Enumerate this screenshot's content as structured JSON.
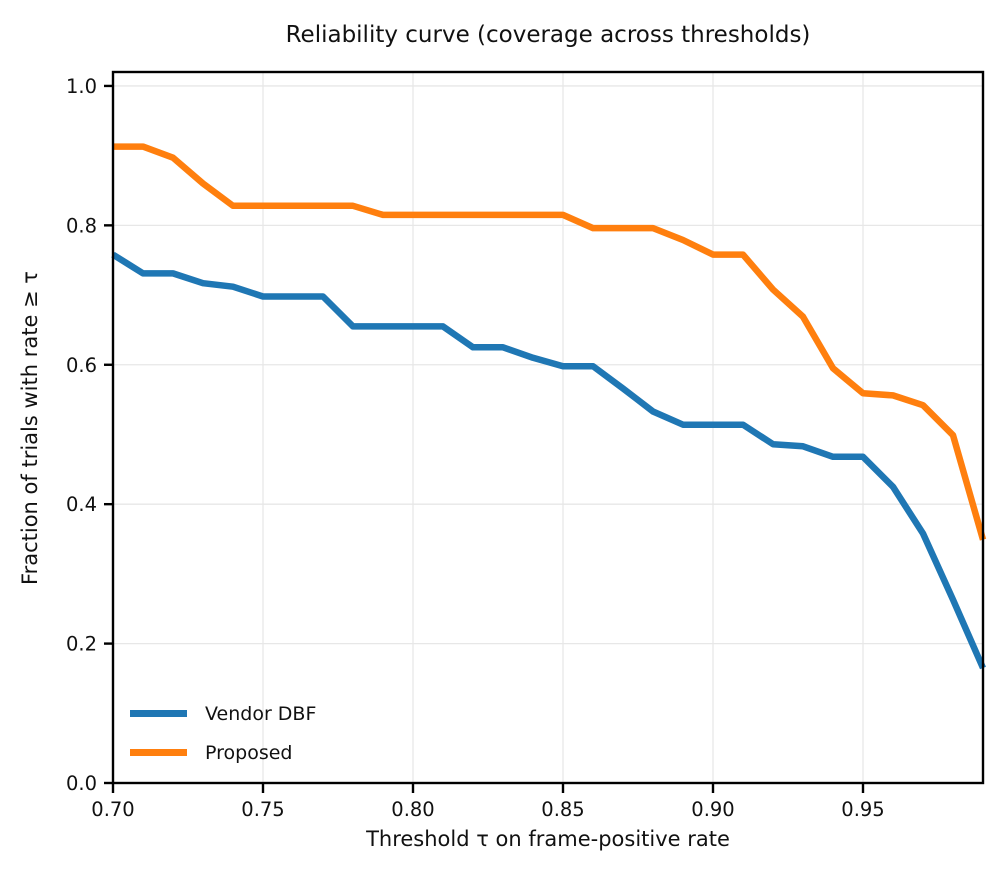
{
  "chart_data": {
    "type": "line",
    "title": "Reliability curve (coverage across thresholds)",
    "xlabel": "Threshold τ on frame-positive rate",
    "ylabel": "Fraction of trials with rate ≥ τ",
    "x": [
      0.7,
      0.71,
      0.72,
      0.73,
      0.74,
      0.75,
      0.76,
      0.77,
      0.78,
      0.79,
      0.8,
      0.81,
      0.82,
      0.83,
      0.84,
      0.85,
      0.86,
      0.87,
      0.88,
      0.89,
      0.9,
      0.91,
      0.92,
      0.93,
      0.94,
      0.95,
      0.96,
      0.97,
      0.98,
      0.99
    ],
    "series": [
      {
        "name": "Vendor DBF",
        "color": "#1f77b4",
        "values": [
          0.758,
          0.731,
          0.731,
          0.717,
          0.712,
          0.698,
          0.698,
          0.698,
          0.655,
          0.655,
          0.655,
          0.655,
          0.625,
          0.625,
          0.61,
          0.598,
          0.598,
          0.566,
          0.533,
          0.514,
          0.514,
          0.514,
          0.486,
          0.483,
          0.468,
          0.468,
          0.425,
          0.358,
          0.263,
          0.165
        ]
      },
      {
        "name": "Proposed",
        "color": "#ff7f0e",
        "values": [
          0.913,
          0.913,
          0.897,
          0.86,
          0.828,
          0.828,
          0.828,
          0.828,
          0.828,
          0.815,
          0.815,
          0.815,
          0.815,
          0.815,
          0.815,
          0.815,
          0.796,
          0.796,
          0.796,
          0.779,
          0.758,
          0.758,
          0.708,
          0.669,
          0.595,
          0.559,
          0.556,
          0.542,
          0.499,
          0.349
        ]
      }
    ],
    "xlim": [
      0.7,
      0.99
    ],
    "ylim": [
      0.0,
      1.02
    ],
    "xticks": [
      {
        "value": 0.7,
        "label": "0.70"
      },
      {
        "value": 0.75,
        "label": "0.75"
      },
      {
        "value": 0.8,
        "label": "0.80"
      },
      {
        "value": 0.85,
        "label": "0.85"
      },
      {
        "value": 0.9,
        "label": "0.90"
      },
      {
        "value": 0.95,
        "label": "0.95"
      }
    ],
    "yticks": [
      {
        "value": 0.0,
        "label": "0.0"
      },
      {
        "value": 0.2,
        "label": "0.2"
      },
      {
        "value": 0.4,
        "label": "0.4"
      },
      {
        "value": 0.6,
        "label": "0.6"
      },
      {
        "value": 0.8,
        "label": "0.8"
      },
      {
        "value": 1.0,
        "label": "1.0"
      }
    ],
    "grid": true,
    "legend": {
      "position": "lower left",
      "entries": [
        "Vendor DBF",
        "Proposed"
      ]
    }
  }
}
